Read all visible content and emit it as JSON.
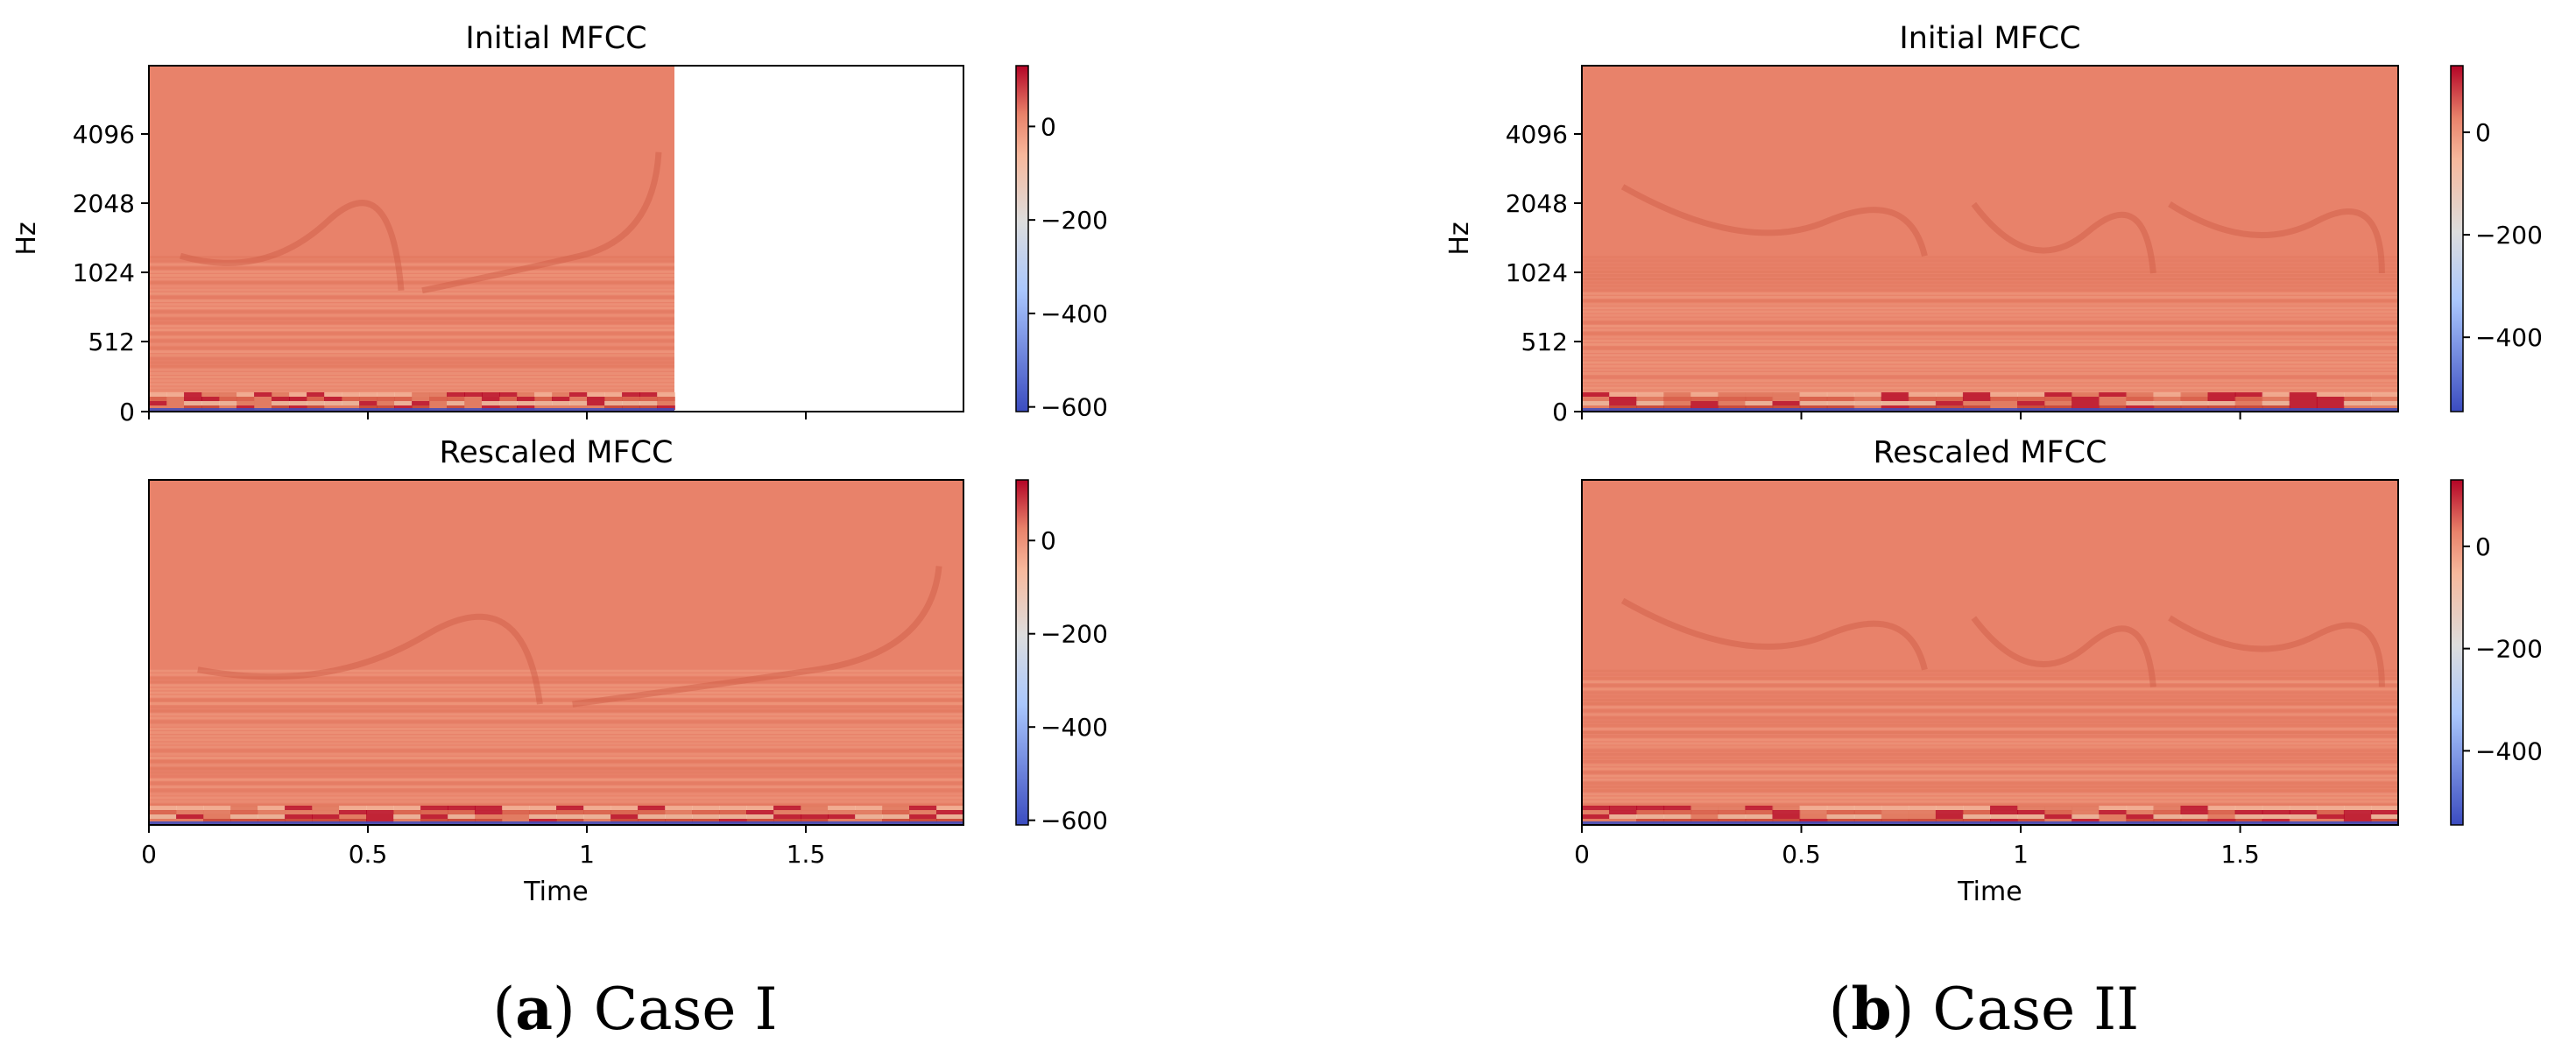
{
  "colors": {
    "base": "#e8826a",
    "dark_red": "#b40426",
    "white": "#dddddd",
    "dark_blue": "#3b4cc0"
  },
  "colormap": "coolwarm",
  "captions": [
    {
      "letter": "a",
      "text": " Case I"
    },
    {
      "letter": "b",
      "text": " Case II"
    }
  ],
  "chart_data": [
    {
      "type": "heatmap",
      "title": "Initial MFCC",
      "ylabel": "Hz",
      "xlabel": "",
      "yticks": [
        "0",
        "512",
        "1024",
        "2048",
        "4096"
      ],
      "xticks": [
        "0",
        "0.5",
        "1",
        "1.5"
      ],
      "xtick_values": [
        0,
        0.5,
        1,
        1.5
      ],
      "xlim": [
        0,
        1.86
      ],
      "data_end": 1.2,
      "colorbar": {
        "ticks": [
          "0",
          "−200",
          "−400",
          "−600"
        ],
        "tick_values": [
          0,
          -200,
          -400,
          -600
        ],
        "range": [
          -610,
          130
        ]
      }
    },
    {
      "type": "heatmap",
      "title": "Rescaled MFCC",
      "ylabel": "",
      "xlabel": "Time",
      "yticks": [],
      "xticks": [
        "0",
        "0.5",
        "1",
        "1.5"
      ],
      "xtick_values": [
        0,
        0.5,
        1,
        1.5
      ],
      "xlim": [
        0,
        1.86
      ],
      "data_end": 1.86,
      "colorbar": {
        "ticks": [
          "0",
          "−200",
          "−400",
          "−600"
        ],
        "tick_values": [
          0,
          -200,
          -400,
          -600
        ],
        "range": [
          -610,
          130
        ]
      }
    },
    {
      "type": "heatmap",
      "title": "Initial MFCC",
      "ylabel": "Hz",
      "xlabel": "",
      "yticks": [
        "0",
        "512",
        "1024",
        "2048",
        "4096"
      ],
      "xticks": [
        "0",
        "0.5",
        "1",
        "1.5"
      ],
      "xtick_values": [
        0,
        0.5,
        1,
        1.5
      ],
      "xlim": [
        0,
        1.86
      ],
      "data_end": 1.86,
      "colorbar": {
        "ticks": [
          "0",
          "−200",
          "−400"
        ],
        "tick_values": [
          0,
          -200,
          -400
        ],
        "range": [
          -545,
          130
        ]
      }
    },
    {
      "type": "heatmap",
      "title": "Rescaled MFCC",
      "ylabel": "",
      "xlabel": "Time",
      "yticks": [],
      "xticks": [
        "0",
        "0.5",
        "1",
        "1.5"
      ],
      "xtick_values": [
        0,
        0.5,
        1,
        1.5
      ],
      "xlim": [
        0,
        1.86
      ],
      "data_end": 1.86,
      "colorbar": {
        "ticks": [
          "0",
          "−200",
          "−400"
        ],
        "tick_values": [
          0,
          -200,
          -400
        ],
        "range": [
          -545,
          130
        ]
      }
    }
  ]
}
